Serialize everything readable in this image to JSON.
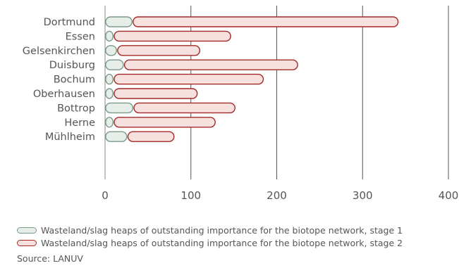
{
  "chart_data": {
    "type": "bar",
    "orientation": "horizontal",
    "stacked": true,
    "categories": [
      "Dortmund",
      "Essen",
      "Gelsenkirchen",
      "Duisburg",
      "Bochum",
      "Oberhausen",
      "Bottrop",
      "Herne",
      "Mühlheim"
    ],
    "series": [
      {
        "name": "Wasteland/slag heaps of outstanding importance for the biotope network, stage 1",
        "values": [
          32,
          10,
          14,
          22,
          10,
          10,
          33,
          10,
          26
        ],
        "fill": "#e7eeea",
        "stroke": "#7a9a88"
      },
      {
        "name": "Wasteland/slag heaps of outstanding importance for the biotope network, stage 2",
        "values": [
          310,
          137,
          97,
          203,
          175,
          98,
          119,
          119,
          55
        ],
        "fill": "#f7e1df",
        "stroke": "#a32a28"
      }
    ],
    "xlim": [
      0,
      400
    ],
    "xticks": [
      "0",
      "100",
      "200",
      "300",
      "400"
    ],
    "grid": true,
    "legend": "bottom"
  },
  "source": "Source: LANUV"
}
